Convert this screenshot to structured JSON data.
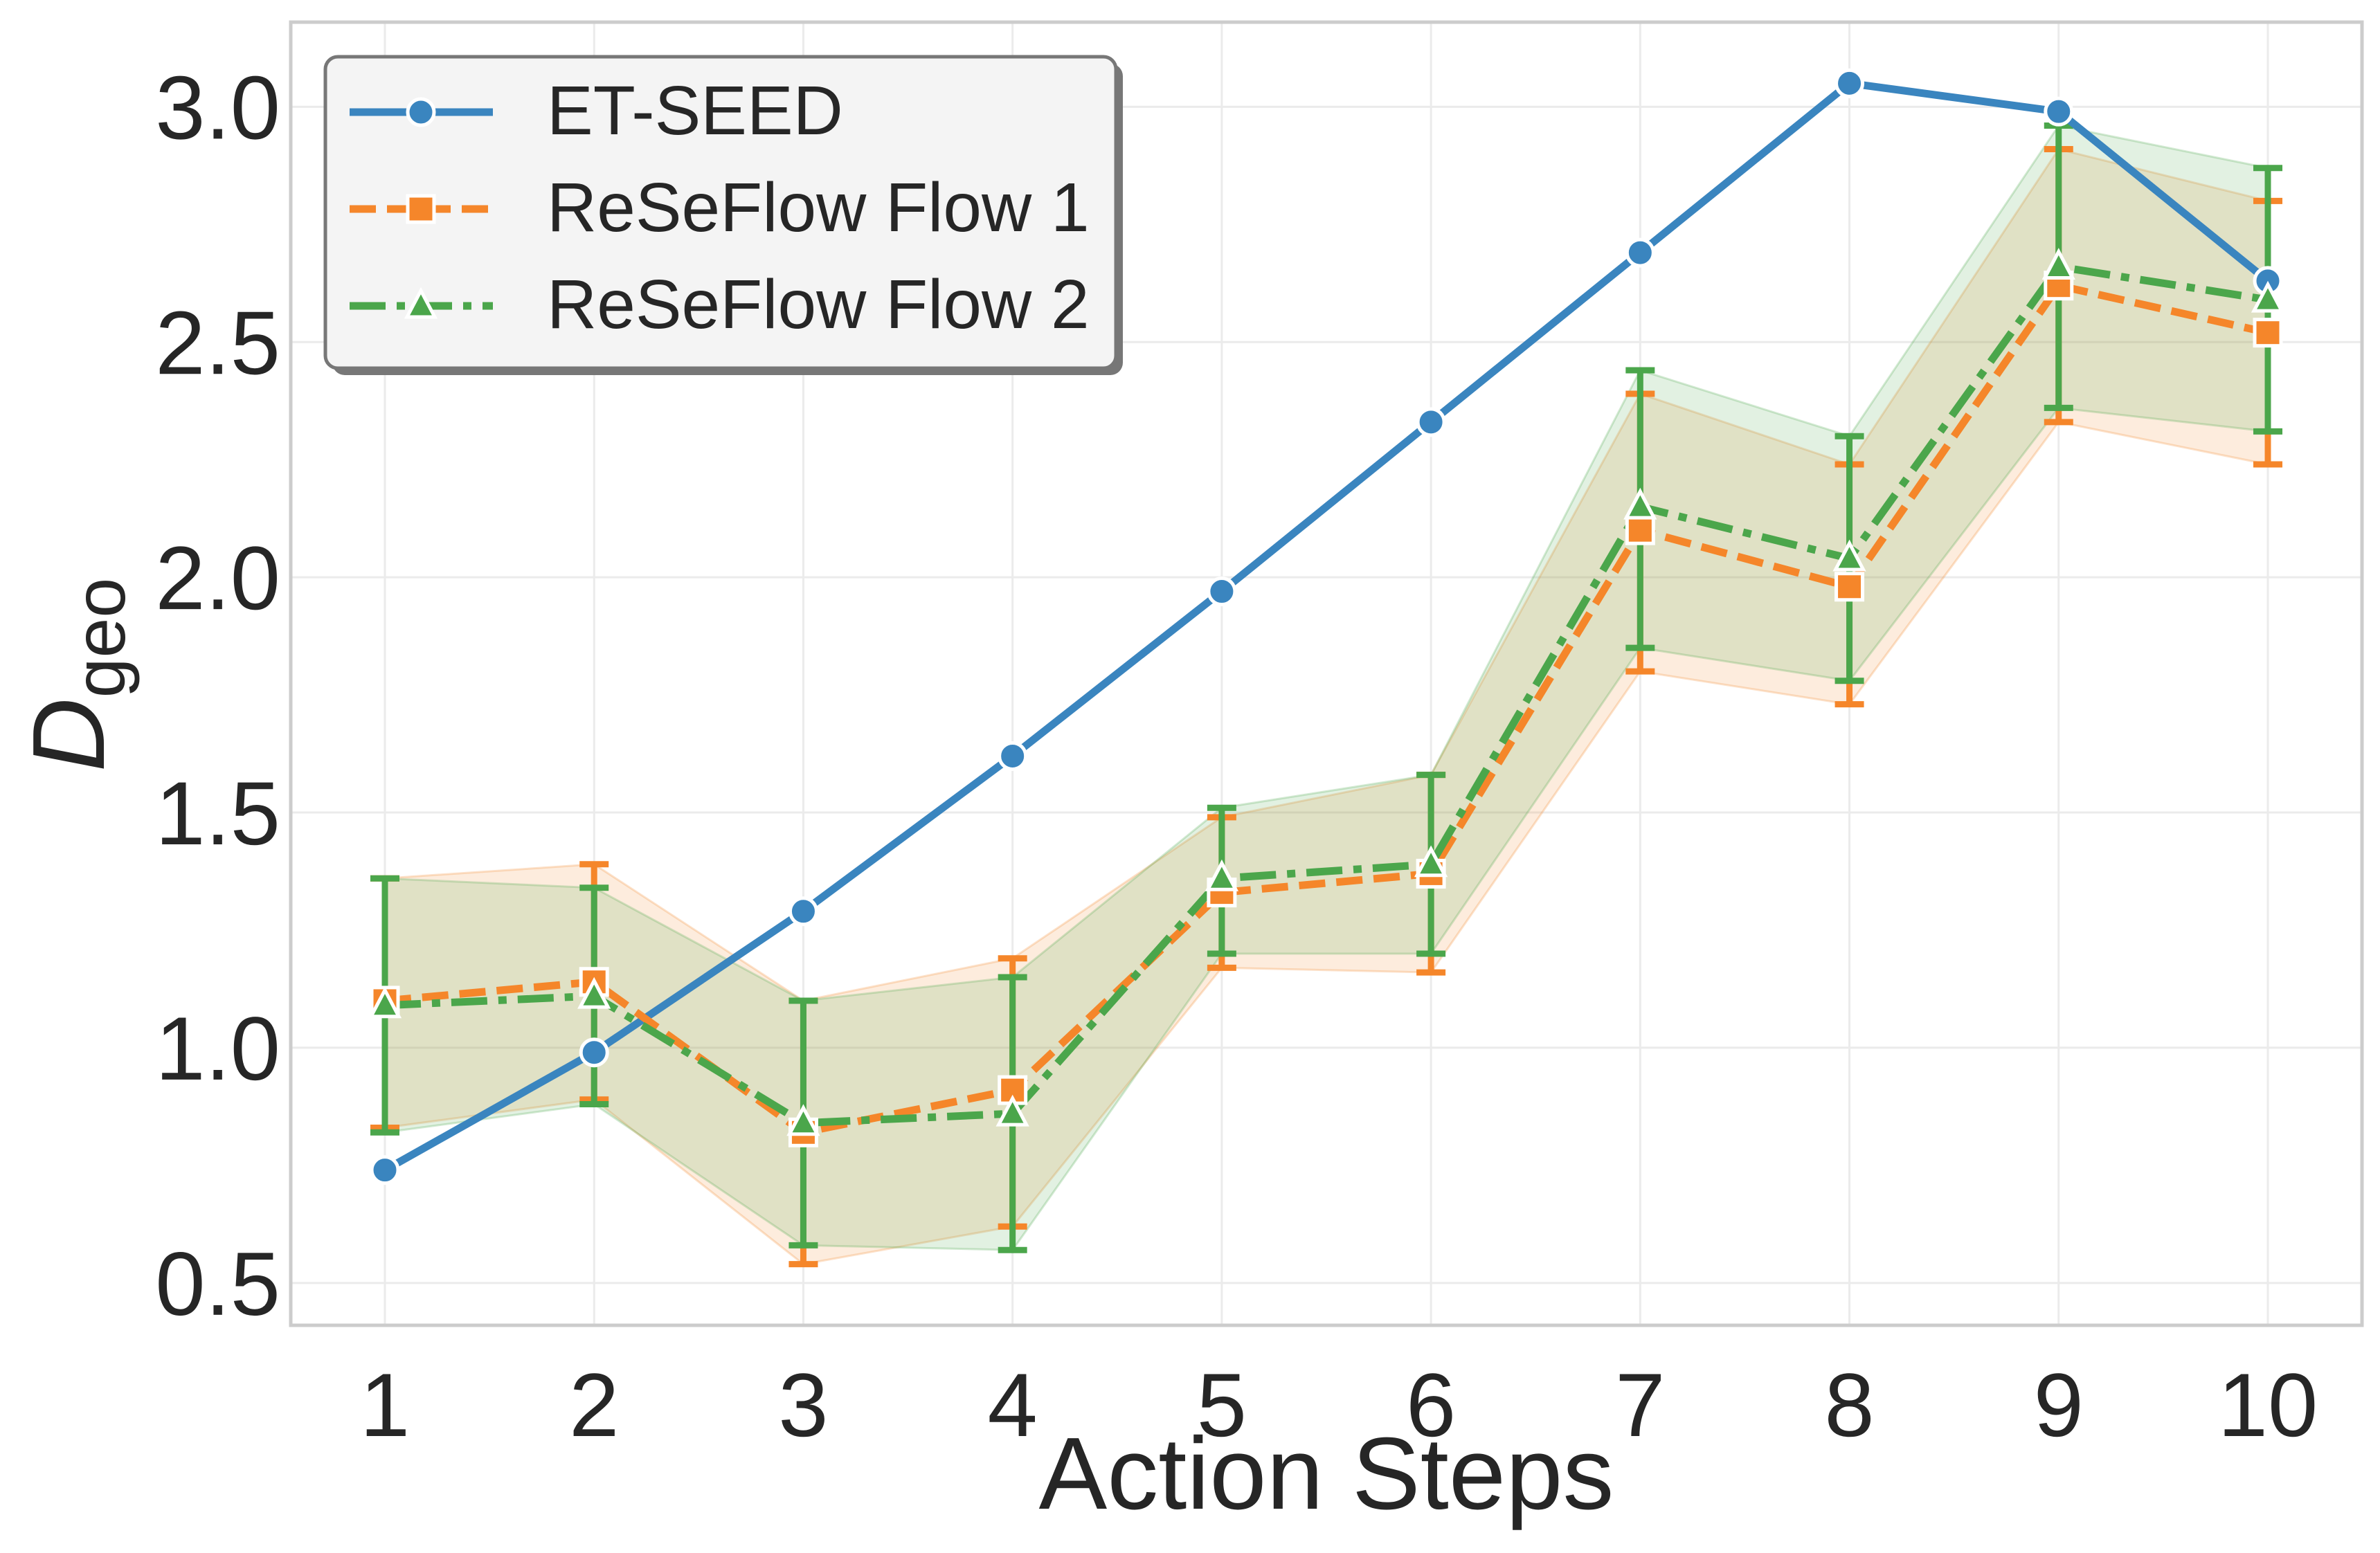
{
  "chart_data": {
    "type": "line",
    "xlabel": "Action Steps",
    "ylabel": "D",
    "ylabel_subscript": "geo",
    "x": [
      1,
      2,
      3,
      4,
      5,
      6,
      7,
      8,
      9,
      10
    ],
    "xticks": [
      "1",
      "2",
      "3",
      "4",
      "5",
      "6",
      "7",
      "8",
      "9",
      "10"
    ],
    "yticks": [
      "0.5",
      "1.0",
      "1.5",
      "2.0",
      "2.5",
      "3.0"
    ],
    "ytick_values": [
      0.5,
      1.0,
      1.5,
      2.0,
      2.5,
      3.0
    ],
    "xlim": [
      0.55,
      10.45
    ],
    "ylim": [
      0.41,
      3.18
    ],
    "grid": true,
    "legend_position": "top-left",
    "series": [
      {
        "name": "ET-SEED",
        "color": "#3a85bf",
        "line_style": "solid",
        "marker": "circle",
        "values": [
          0.74,
          0.99,
          1.29,
          1.62,
          1.97,
          2.33,
          2.69,
          3.05,
          2.99,
          2.63
        ]
      },
      {
        "name": "ReSeFlow Flow 1",
        "color": "#f5862a",
        "line_style": "dashed",
        "marker": "square",
        "values": [
          1.1,
          1.14,
          0.82,
          0.91,
          1.33,
          1.37,
          2.1,
          1.98,
          2.62,
          2.52
        ],
        "lower": [
          0.83,
          0.89,
          0.54,
          0.62,
          1.17,
          1.16,
          1.8,
          1.73,
          2.33,
          2.24
        ],
        "upper": [
          1.36,
          1.39,
          1.1,
          1.19,
          1.49,
          1.58,
          2.39,
          2.24,
          2.91,
          2.8
        ]
      },
      {
        "name": "ReSeFlow Flow 2",
        "color": "#4ba64b",
        "line_style": "dashdot",
        "marker": "triangle",
        "values": [
          1.09,
          1.11,
          0.84,
          0.86,
          1.36,
          1.39,
          2.15,
          2.04,
          2.66,
          2.59
        ],
        "lower": [
          0.82,
          0.88,
          0.58,
          0.57,
          1.2,
          1.2,
          1.85,
          1.78,
          2.36,
          2.31
        ],
        "upper": [
          1.36,
          1.34,
          1.1,
          1.15,
          1.51,
          1.58,
          2.44,
          2.3,
          2.96,
          2.87
        ]
      }
    ]
  }
}
